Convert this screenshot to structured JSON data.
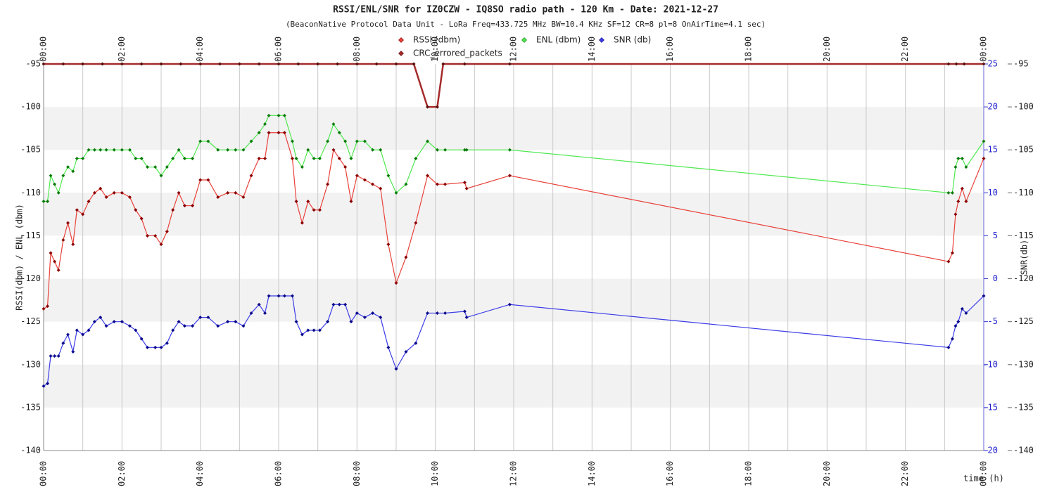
{
  "chart_data": {
    "type": "line",
    "title": "RSSI/ENL/SNR for IZ0CZW - IQ8SO radio path - 120 Km - Date: 2021-12-27",
    "subtitle": "(BeaconNative Protocol Data Unit - LoRa Freq=433.725 MHz BW=10.4 KHz SF=12 CR=8 pl=8 OnAirTime=4.1 sec)",
    "ylabel": "RSSI(dbm) / ENL (dbm)",
    "y2label": "SNR(db)",
    "xlabel": "time (h)",
    "grid": true,
    "xlim": [
      0,
      24
    ],
    "xticks": [
      {
        "value": 0,
        "label": "00:00"
      },
      {
        "value": 2,
        "label": "02:00"
      },
      {
        "value": 4,
        "label": "04:00"
      },
      {
        "value": 6,
        "label": "06:00"
      },
      {
        "value": 8,
        "label": "08:00"
      },
      {
        "value": 10,
        "label": "10:00"
      },
      {
        "value": 12,
        "label": "12:00"
      },
      {
        "value": 14,
        "label": "14:00"
      },
      {
        "value": 16,
        "label": "16:00"
      },
      {
        "value": 18,
        "label": "18:00"
      },
      {
        "value": 20,
        "label": "20:00"
      },
      {
        "value": 22,
        "label": "22:00"
      },
      {
        "value": 24,
        "label": "00:00"
      }
    ],
    "ylim": [
      -140,
      -95
    ],
    "yticks": [
      -95,
      -100,
      -105,
      -110,
      -115,
      -120,
      -125,
      -130,
      -135,
      -140
    ],
    "y2lim": [
      -20,
      25
    ],
    "y2ticks": [
      25,
      20,
      15,
      10,
      5,
      0,
      -5,
      -10,
      -15,
      -20
    ],
    "x": [
      0.0,
      0.1,
      0.18,
      0.28,
      0.38,
      0.5,
      0.62,
      0.75,
      0.85,
      1.0,
      1.15,
      1.3,
      1.45,
      1.6,
      1.8,
      2.0,
      2.2,
      2.35,
      2.5,
      2.65,
      2.85,
      3.0,
      3.15,
      3.3,
      3.45,
      3.6,
      3.8,
      4.0,
      4.2,
      4.45,
      4.7,
      4.9,
      5.1,
      5.3,
      5.5,
      5.65,
      5.75,
      6.0,
      6.15,
      6.35,
      6.45,
      6.6,
      6.75,
      6.9,
      7.05,
      7.25,
      7.4,
      7.55,
      7.7,
      7.85,
      8.0,
      8.2,
      8.4,
      8.6,
      8.8,
      9.0,
      9.25,
      9.5,
      9.8,
      10.05,
      10.25,
      10.75,
      10.8,
      11.9,
      23.1,
      23.2,
      23.28,
      23.35,
      23.45,
      23.55,
      24.0
    ],
    "series": [
      {
        "name": "RSSI (dbm)",
        "color": "#e8413a",
        "marker_color": "#8b0000",
        "values": [
          -123.5,
          -123.2,
          -117,
          -118,
          -119,
          -115.5,
          -113.5,
          -116,
          -112,
          -112.5,
          -111,
          -110,
          -109.5,
          -110.5,
          -110,
          -110,
          -110.5,
          -112,
          -113,
          -115,
          -115,
          -116,
          -114.5,
          -112,
          -110,
          -111.5,
          -111.5,
          -108.5,
          -108.5,
          -110.5,
          -110,
          -110,
          -110.5,
          -108,
          -106,
          -106,
          -103,
          -103,
          -103,
          -106,
          -111,
          -113.5,
          -111,
          -112,
          -112,
          -109,
          -105,
          -106,
          -107,
          -111,
          -108,
          -108.5,
          -109,
          -109.5,
          -116,
          -120.5,
          -117.5,
          -113.5,
          -108,
          -109,
          -109,
          -108.8,
          -109.5,
          -108,
          -118,
          -117,
          -112.5,
          -111,
          -109.5,
          -111,
          -106
        ]
      },
      {
        "name": "ENL (dbm)",
        "color": "#4ee84e",
        "marker_color": "#0a7a0a",
        "values": [
          -111,
          -111,
          -108,
          -109,
          -110,
          -108,
          -107,
          -107.5,
          -106,
          -106,
          -105,
          -105,
          -105,
          -105,
          -105,
          -105,
          -105,
          -106,
          -106,
          -107,
          -107,
          -108,
          -107,
          -106,
          -105,
          -106,
          -106,
          -104,
          -104,
          -105,
          -105,
          -105,
          -105,
          -104,
          -103,
          -102,
          -101,
          -101,
          -101,
          -104,
          -106,
          -107,
          -105,
          -106,
          -106,
          -104,
          -102,
          -103,
          -104,
          -106,
          -104,
          -104,
          -105,
          -105,
          -108,
          -110,
          -109,
          -106,
          -104,
          -105,
          -105,
          -105,
          -105,
          -105,
          -110,
          -110,
          -107,
          -106,
          -106,
          -107,
          -104
        ]
      },
      {
        "name": "SNR (db)",
        "color": "#3c3ce8",
        "marker_color": "#0a0a8b",
        "axis": "y2",
        "values": [
          -12.5,
          -12.2,
          -9,
          -9,
          -9,
          -7.5,
          -6.5,
          -8.5,
          -6,
          -6.5,
          -6,
          -5,
          -4.5,
          -5.5,
          -5,
          -5,
          -5.5,
          -6,
          -7,
          -8,
          -8,
          -8,
          -7.5,
          -6,
          -5,
          -5.5,
          -5.5,
          -4.5,
          -4.5,
          -5.5,
          -5,
          -5,
          -5.5,
          -4,
          -3,
          -4,
          -2,
          -2,
          -2,
          -2,
          -5,
          -6.5,
          -6,
          -6,
          -6,
          -5,
          -3,
          -3,
          -3,
          -5,
          -4,
          -4.5,
          -4,
          -4.5,
          -8,
          -10.5,
          -8.5,
          -7.5,
          -4,
          -4,
          -4,
          -3.8,
          -4.5,
          -3,
          -8,
          -7,
          -5.5,
          -5,
          -3.5,
          -4,
          -2
        ]
      },
      {
        "name": "CRC_errored_packets",
        "color": "#a52a2a",
        "marker_color": "#5a1010",
        "x": [
          0,
          0.5,
          1,
          1.5,
          2,
          2.5,
          3,
          3.5,
          4,
          4.5,
          5,
          5.5,
          6,
          6.5,
          7,
          7.5,
          8,
          8.5,
          9,
          9.45,
          9.8,
          10.05,
          10.2,
          10.75,
          11.9,
          23.1,
          23.3,
          23.5,
          24
        ],
        "values": [
          -95,
          -95,
          -95,
          -95,
          -95,
          -95,
          -95,
          -95,
          -95,
          -95,
          -95,
          -95,
          -95,
          -95,
          -95,
          -95,
          -95,
          -95,
          -95,
          -95,
          -100,
          -100,
          -95,
          -95,
          -95,
          -95,
          -95,
          -95,
          -95
        ]
      }
    ]
  }
}
